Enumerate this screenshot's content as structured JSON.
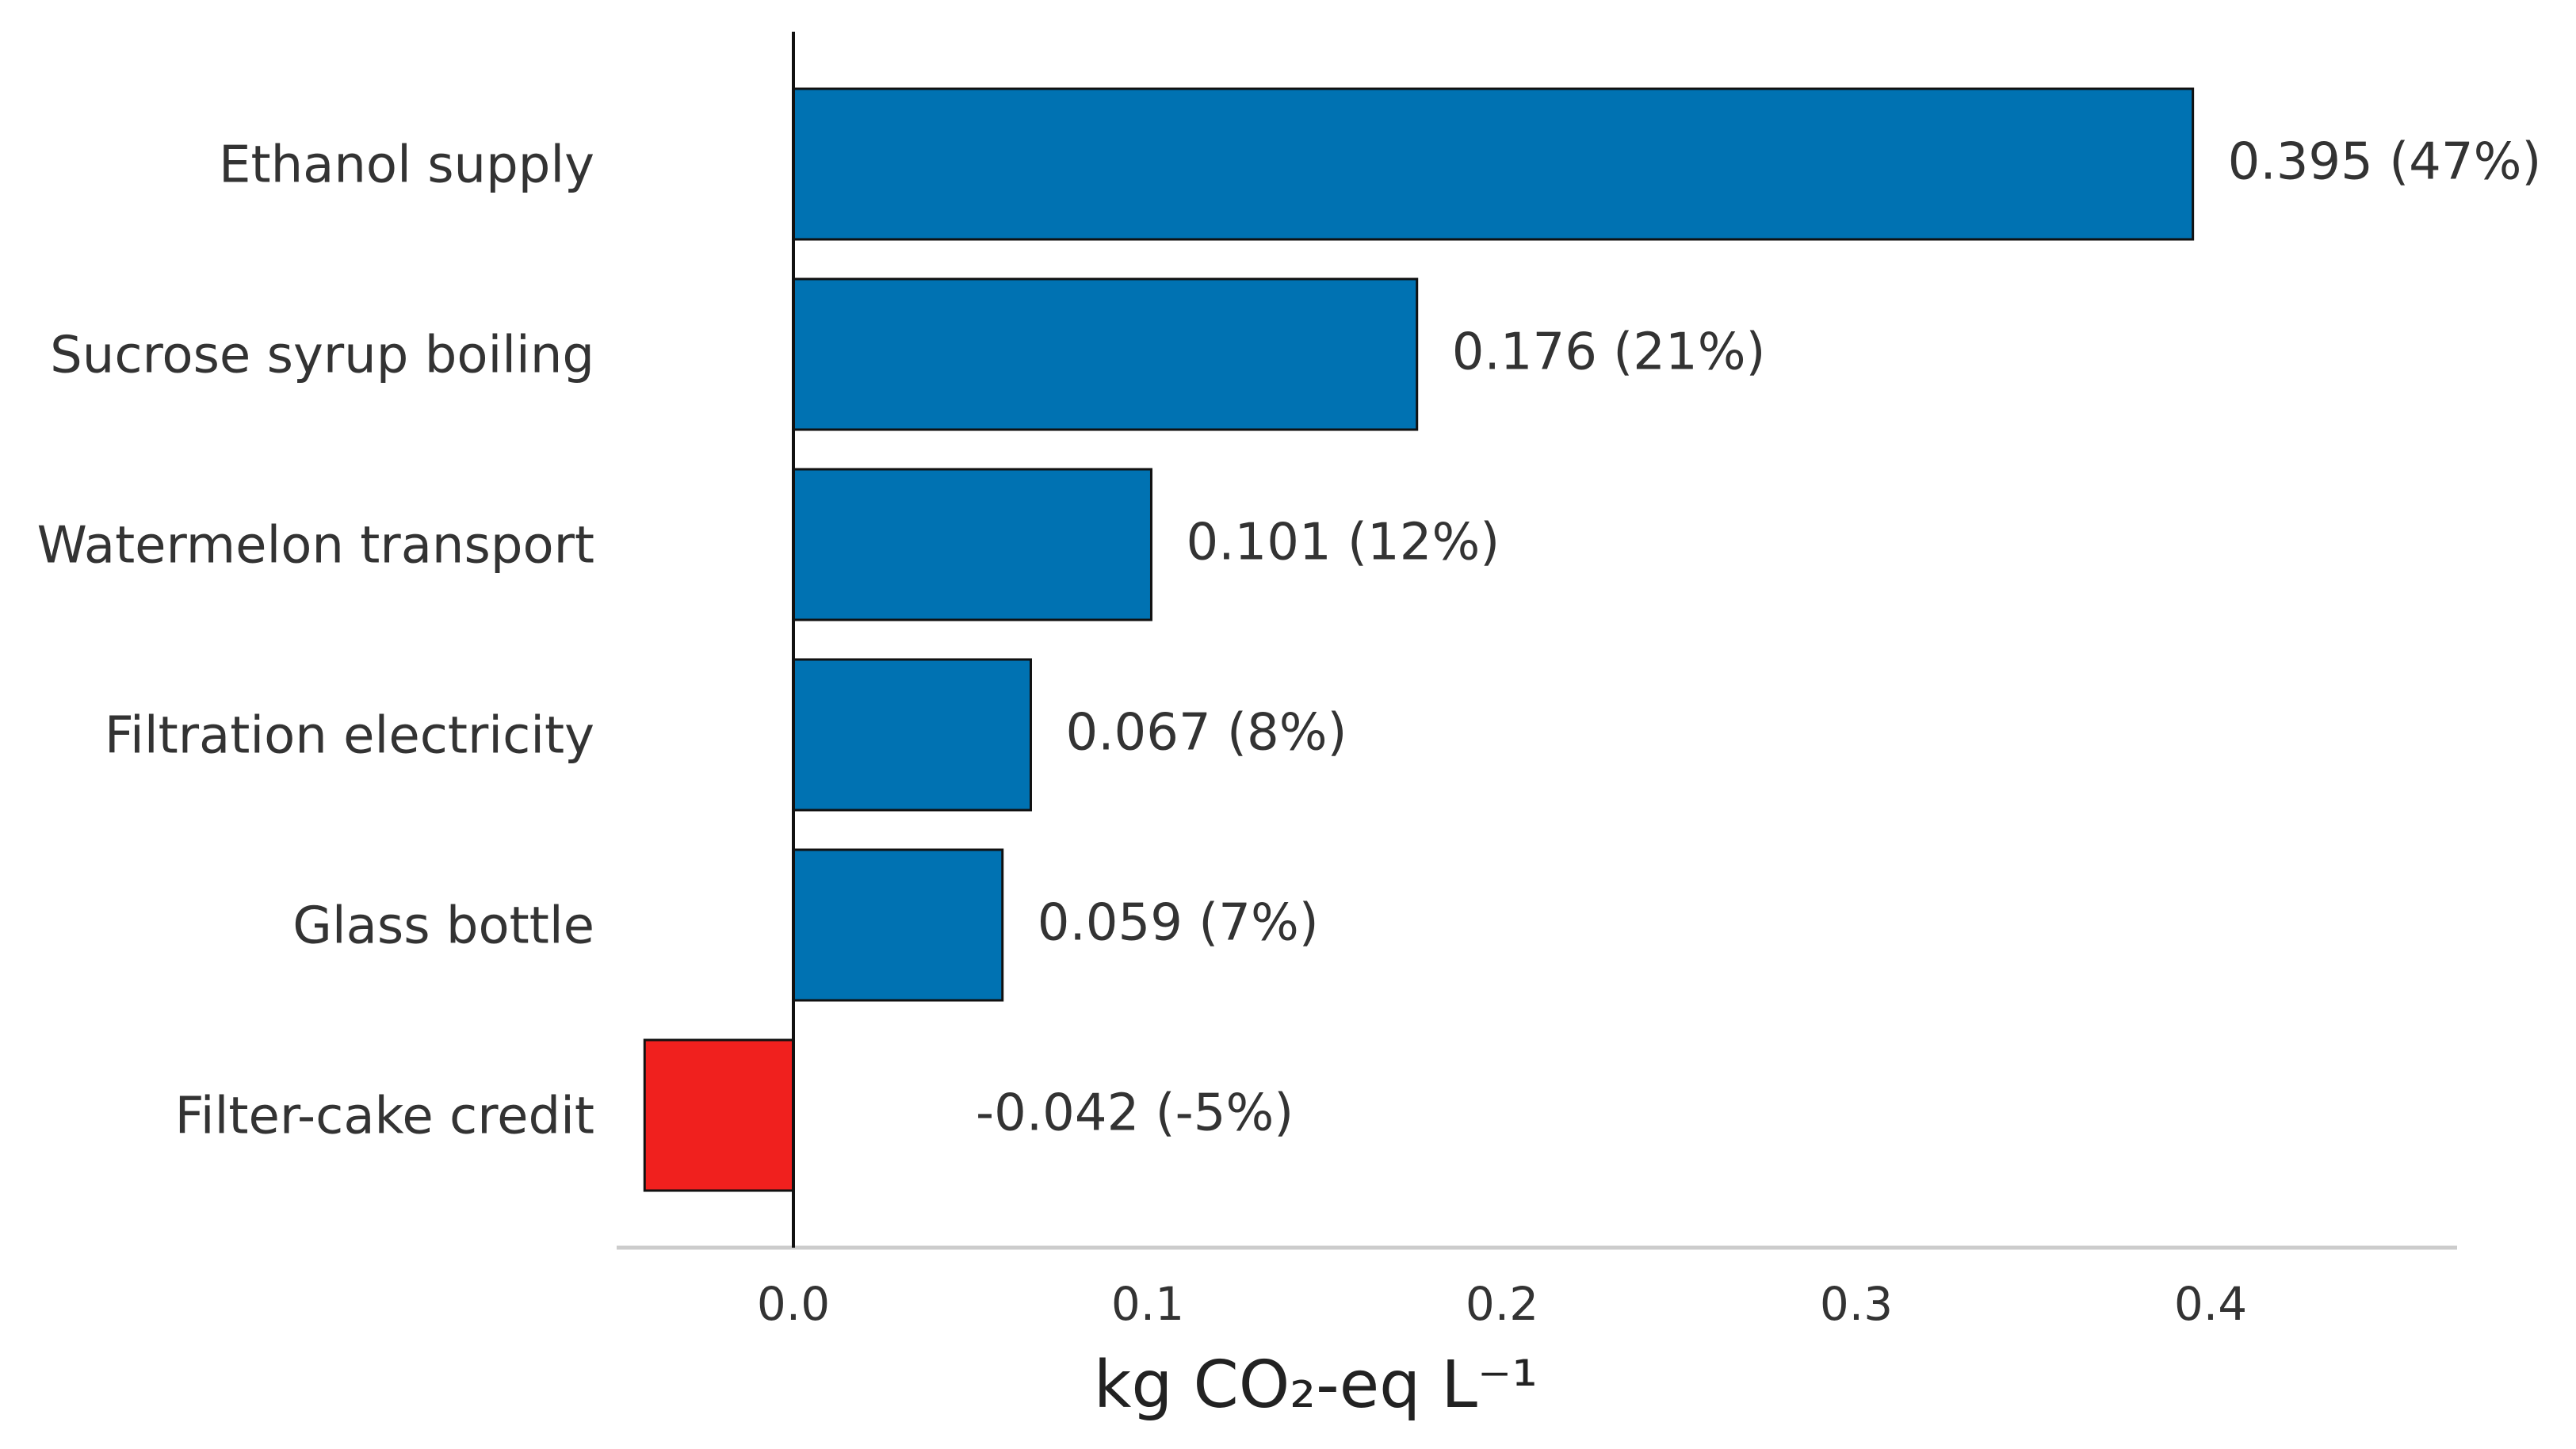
{
  "chart_data": {
    "type": "bar",
    "orientation": "horizontal",
    "categories": [
      "Ethanol supply",
      "Sucrose syrup boiling",
      "Watermelon transport",
      "Filtration electricity",
      "Glass bottle",
      "Filter-cake credit"
    ],
    "values": [
      0.395,
      0.176,
      0.101,
      0.067,
      0.059,
      -0.042
    ],
    "value_labels": [
      "0.395  (47%)",
      "0.176  (21%)",
      "0.101  (12%)",
      "0.067  (8%)",
      "0.059  (7%)",
      "-0.042  (-5%)"
    ],
    "bar_colors": [
      "#0072b2",
      "#0072b2",
      "#0072b2",
      "#0072b2",
      "#0072b2",
      "#f0201e"
    ],
    "xlabel": "kg CO₂-eq L⁻¹",
    "xlim": [
      -0.05,
      0.47
    ],
    "xticks": [
      0.0,
      0.1,
      0.2,
      0.3,
      0.4
    ],
    "xtick_labels": [
      "0.0",
      "0.1",
      "0.2",
      "0.3",
      "0.4"
    ],
    "grid": false,
    "zero_line": true
  }
}
